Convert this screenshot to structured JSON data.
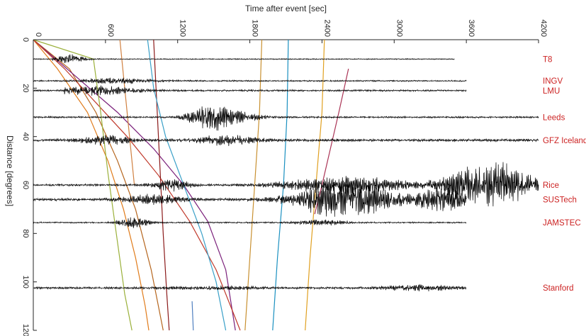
{
  "chart_data": {
    "type": "line",
    "title": "",
    "xlabel": "Time after event [sec]",
    "ylabel": "Distance [degrees]",
    "xlim": [
      0,
      4200
    ],
    "ylim": [
      0,
      120
    ],
    "y_reversed": true,
    "x_axis_position": "top",
    "x_ticks": [
      0,
      600,
      1200,
      1800,
      2400,
      3000,
      3600,
      4200
    ],
    "y_ticks": [
      0,
      20,
      40,
      60,
      80,
      100,
      120
    ],
    "grid": "off",
    "label_color": "#cc2222",
    "stations": [
      {
        "name": "T8",
        "distance": 8.0,
        "t_end": 3500
      },
      {
        "name": "INGV",
        "distance": 17.0,
        "t_end": 3600
      },
      {
        "name": "LMU",
        "distance": 21.0,
        "t_end": 3600
      },
      {
        "name": "Leeds",
        "distance": 32.0,
        "t_end": 4200
      },
      {
        "name": "GFZ Iceland",
        "distance": 41.5,
        "t_end": 4200
      },
      {
        "name": "Rice",
        "distance": 60.0,
        "t_end": 4200
      },
      {
        "name": "SUSTech",
        "distance": 66.0,
        "t_end": 3600
      },
      {
        "name": "JAMSTEC",
        "distance": 75.5,
        "t_end": 3600
      },
      {
        "name": "Stanford",
        "distance": 102.5,
        "t_end": 3600
      }
    ],
    "phase_curves": [
      {
        "color": "#e07b1a",
        "points": [
          [
            0,
            0
          ],
          [
            200,
            12
          ],
          [
            450,
            30
          ],
          [
            620,
            50
          ],
          [
            750,
            70
          ],
          [
            850,
            90
          ],
          [
            930,
            110
          ],
          [
            960,
            120
          ]
        ]
      },
      {
        "color": "#b5651d",
        "points": [
          [
            0,
            0
          ],
          [
            300,
            12
          ],
          [
            520,
            30
          ],
          [
            700,
            50
          ],
          [
            850,
            70
          ],
          [
            980,
            95
          ],
          [
            1080,
            120
          ]
        ]
      },
      {
        "color": "#7a1f7a",
        "points": [
          [
            0,
            0
          ],
          [
            350,
            15
          ],
          [
            700,
            30
          ],
          [
            1000,
            45
          ],
          [
            1250,
            60
          ],
          [
            1450,
            75
          ],
          [
            1600,
            95
          ],
          [
            1680,
            120
          ]
        ]
      },
      {
        "color": "#c0392b",
        "points": [
          [
            0,
            0
          ],
          [
            260,
            12
          ],
          [
            520,
            26
          ],
          [
            780,
            40
          ],
          [
            1040,
            56
          ],
          [
            1300,
            75
          ],
          [
            1520,
            95
          ],
          [
            1720,
            120
          ]
        ]
      },
      {
        "color": "#9ab03a",
        "points": [
          [
            0,
            0
          ],
          [
            500,
            8
          ],
          [
            560,
            30
          ],
          [
            620,
            55
          ],
          [
            690,
            80
          ],
          [
            760,
            105
          ],
          [
            820,
            120
          ]
        ]
      },
      {
        "color": "#8b1a1a",
        "points": [
          [
            1000,
            0
          ],
          [
            1020,
            20
          ],
          [
            1050,
            50
          ],
          [
            1080,
            80
          ],
          [
            1110,
            105
          ],
          [
            1130,
            120
          ]
        ]
      },
      {
        "color": "#d08040",
        "points": [
          [
            720,
            0
          ],
          [
            760,
            20
          ],
          [
            800,
            40
          ],
          [
            840,
            60
          ]
        ]
      },
      {
        "color": "#3aa0c8",
        "points": [
          [
            950,
            0
          ],
          [
            1000,
            20
          ],
          [
            1100,
            40
          ],
          [
            1250,
            60
          ],
          [
            1400,
            80
          ],
          [
            1520,
            100
          ],
          [
            1600,
            120
          ]
        ]
      },
      {
        "color": "#c89030",
        "points": [
          [
            1900,
            0
          ],
          [
            1880,
            30
          ],
          [
            1840,
            60
          ],
          [
            1800,
            90
          ],
          [
            1760,
            120
          ]
        ]
      },
      {
        "color": "#1a90c0",
        "points": [
          [
            2120,
            0
          ],
          [
            2110,
            30
          ],
          [
            2080,
            60
          ],
          [
            2030,
            90
          ],
          [
            1990,
            120
          ]
        ]
      },
      {
        "color": "#e0a020",
        "points": [
          [
            2420,
            0
          ],
          [
            2400,
            30
          ],
          [
            2350,
            60
          ],
          [
            2300,
            90
          ],
          [
            2260,
            120
          ]
        ]
      },
      {
        "color": "#aa3355",
        "points": [
          [
            2620,
            12
          ],
          [
            2540,
            30
          ],
          [
            2470,
            45
          ],
          [
            2400,
            60
          ],
          [
            2340,
            72
          ]
        ]
      },
      {
        "color": "#5080c0",
        "points": [
          [
            1320,
            108
          ],
          [
            1330,
            120
          ]
        ]
      }
    ]
  }
}
